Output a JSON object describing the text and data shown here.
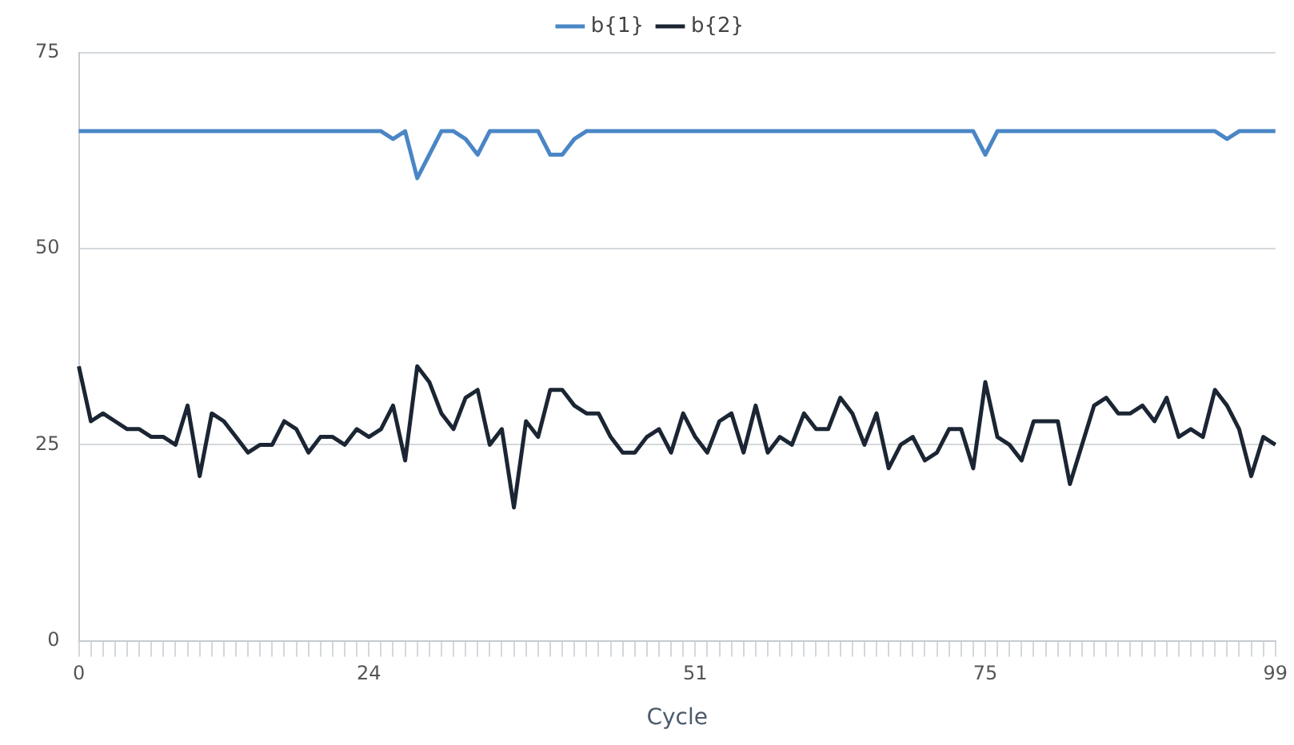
{
  "chart_data": {
    "type": "line",
    "xlabel": "Cycle",
    "categories": [
      "0",
      null,
      null,
      null,
      null,
      null,
      null,
      null,
      null,
      null,
      null,
      null,
      null,
      null,
      null,
      null,
      null,
      null,
      null,
      null,
      null,
      null,
      null,
      null,
      "24",
      null,
      null,
      null,
      null,
      null,
      null,
      null,
      null,
      null,
      null,
      null,
      null,
      null,
      null,
      null,
      null,
      null,
      null,
      null,
      null,
      null,
      null,
      null,
      null,
      null,
      null,
      "51",
      null,
      null,
      null,
      null,
      null,
      null,
      null,
      null,
      null,
      null,
      null,
      null,
      null,
      null,
      null,
      null,
      null,
      null,
      null,
      null,
      null,
      null,
      null,
      "75",
      null,
      null,
      null,
      null,
      null,
      null,
      null,
      null,
      null,
      null,
      null,
      null,
      null,
      null,
      null,
      null,
      null,
      null,
      null,
      null,
      null,
      null,
      null,
      "99"
    ],
    "series": [
      {
        "name": "b{1}",
        "color": "#4a86c5",
        "values": [
          65,
          65,
          65,
          65,
          65,
          65,
          65,
          65,
          65,
          65,
          65,
          65,
          65,
          65,
          65,
          65,
          65,
          65,
          65,
          65,
          65,
          65,
          65,
          65,
          65,
          65,
          64,
          65,
          59,
          62,
          65,
          65,
          64,
          62,
          65,
          65,
          65,
          65,
          65,
          62,
          62,
          64,
          65,
          65,
          65,
          65,
          65,
          65,
          65,
          65,
          65,
          65,
          65,
          65,
          65,
          65,
          65,
          65,
          65,
          65,
          65,
          65,
          65,
          65,
          65,
          65,
          65,
          65,
          65,
          65,
          65,
          65,
          65,
          65,
          65,
          62,
          65,
          65,
          65,
          65,
          65,
          65,
          65,
          65,
          65,
          65,
          65,
          65,
          65,
          65,
          65,
          65,
          65,
          65,
          65,
          64,
          65,
          65,
          65,
          65
        ]
      },
      {
        "name": "b{2}",
        "color": "#1b2533",
        "values": [
          35,
          28,
          29,
          28,
          27,
          27,
          26,
          26,
          25,
          30,
          21,
          29,
          28,
          26,
          24,
          25,
          25,
          28,
          27,
          24,
          26,
          26,
          25,
          27,
          26,
          27,
          30,
          23,
          35,
          33,
          29,
          27,
          31,
          32,
          25,
          27,
          17,
          28,
          26,
          32,
          32,
          30,
          29,
          29,
          26,
          24,
          24,
          26,
          27,
          24,
          29,
          26,
          24,
          28,
          29,
          24,
          30,
          24,
          26,
          25,
          29,
          27,
          27,
          31,
          29,
          25,
          29,
          22,
          25,
          26,
          23,
          24,
          27,
          27,
          22,
          33,
          26,
          25,
          23,
          28,
          28,
          28,
          20,
          25,
          30,
          31,
          29,
          29,
          30,
          28,
          31,
          26,
          27,
          26,
          32,
          30,
          27,
          21,
          26,
          25
        ]
      }
    ],
    "ylim": [
      0,
      75
    ],
    "yticks": [
      0,
      25,
      50,
      75
    ],
    "grid": "y",
    "legend": "top",
    "marker": "none",
    "line_style": "solid"
  }
}
